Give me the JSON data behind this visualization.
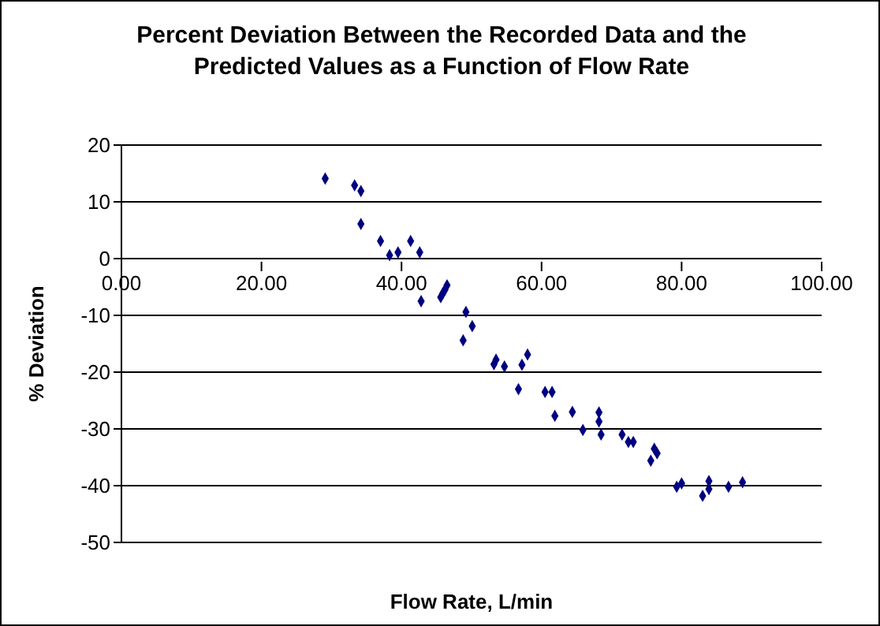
{
  "chart_data": {
    "type": "scatter",
    "title": "Percent Deviation Between the Recorded Data and the Predicted Values as a Function of Flow Rate",
    "xlabel": "Flow Rate, L/min",
    "ylabel": "% Deviation",
    "x": [
      29.1,
      33.3,
      34.2,
      34.2,
      37.0,
      38.3,
      39.5,
      41.3,
      42.6,
      42.8,
      45.6,
      45.9,
      46.2,
      46.5,
      48.8,
      49.2,
      50.1,
      53.2,
      53.5,
      54.7,
      57.2,
      58.0,
      56.7,
      60.5,
      61.5,
      61.9,
      64.4,
      65.9,
      68.2,
      68.2,
      68.5,
      71.5,
      72.4,
      73.1,
      76.1,
      76.5,
      75.6,
      79.3,
      80.0,
      83.0,
      83.9,
      83.9,
      86.7,
      88.7
    ],
    "series": [
      {
        "color": "#000080",
        "values": [
          14.1,
          12.9,
          11.9,
          6.1,
          3.1,
          0.6,
          1.1,
          3.1,
          1.1,
          -7.5,
          -6.8,
          -6.1,
          -5.5,
          -4.7,
          -14.4,
          -9.4,
          -11.9,
          -18.6,
          -17.8,
          -19.0,
          -18.7,
          -16.9,
          -23.0,
          -23.5,
          -23.5,
          -27.7,
          -27.0,
          -30.2,
          -27.1,
          -28.7,
          -31.0,
          -31.0,
          -32.3,
          -32.3,
          -33.5,
          -34.3,
          -35.6,
          -40.2,
          -39.6,
          -41.8,
          -39.2,
          -40.6,
          -40.2,
          -39.4
        ]
      }
    ],
    "xlim": [
      0,
      100
    ],
    "xticks": [
      {
        "value": 0,
        "label": "0.00"
      },
      {
        "value": 20,
        "label": "20.00"
      },
      {
        "value": 40,
        "label": "40.00"
      },
      {
        "value": 60,
        "label": "60.00"
      },
      {
        "value": 80,
        "label": "80.00"
      },
      {
        "value": 100,
        "label": "100.00"
      }
    ],
    "ylim": [
      -50,
      20
    ],
    "yticks": [
      -50,
      -40,
      -30,
      -20,
      -10,
      0,
      10,
      20
    ],
    "grid": "y",
    "marker": "diamond"
  }
}
